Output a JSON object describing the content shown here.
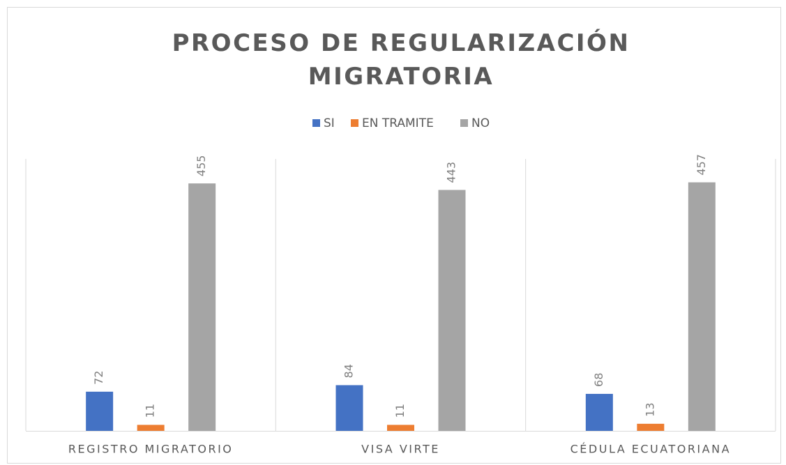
{
  "chart_data": {
    "type": "bar",
    "title": "PROCESO DE REGULARIZACIÓN MIGRATORIA",
    "categories": [
      "REGISTRO MIGRATORIO",
      "VISA VIRTE",
      "CÉDULA ECUATORIANA"
    ],
    "series": [
      {
        "name": "SI",
        "color": "#4472c4",
        "values": [
          72,
          84,
          68
        ]
      },
      {
        "name": "EN TRAMITE",
        "color": "#ed7d31",
        "values": [
          11,
          11,
          13
        ]
      },
      {
        "name": "NO",
        "color": "#a5a5a5",
        "values": [
          455,
          443,
          457
        ]
      }
    ],
    "ylim": [
      0,
      500
    ],
    "legend": "top"
  }
}
